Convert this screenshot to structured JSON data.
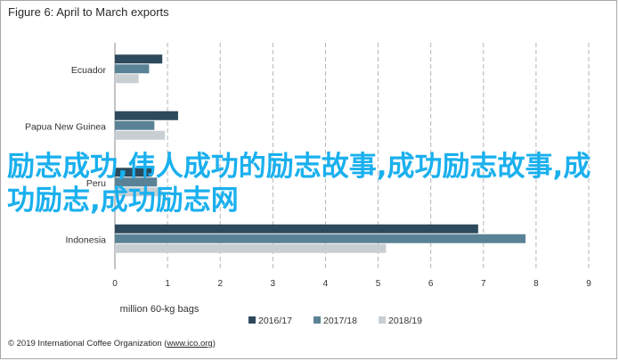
{
  "title": "Figure 6: April to March exports",
  "footer": {
    "prefix": "© 2019 International Coffee Organization (",
    "link": "www.ico.org",
    "suffix": ")"
  },
  "overlay_text": "励志成功,伟人成功的励志故事,成功励志故事,成功励志,成功励志网",
  "chart_data": {
    "type": "bar",
    "orientation": "horizontal",
    "categories": [
      "Ecuador",
      "Papua New Guinea",
      "Peru",
      "Indonesia"
    ],
    "series": [
      {
        "name": "2016/17",
        "color": "#2d4a5c",
        "values": [
          0.9,
          1.2,
          0.7,
          6.9
        ]
      },
      {
        "name": "2017/18",
        "color": "#5a8296",
        "values": [
          0.65,
          0.75,
          0.8,
          7.8
        ]
      },
      {
        "name": "2018/19",
        "color": "#c9ced2",
        "values": [
          0.45,
          0.95,
          0.9,
          5.15
        ]
      }
    ],
    "xlabel": "million 60-kg bags",
    "xlim": [
      0,
      9
    ],
    "xticks": [
      "0",
      "1",
      "2",
      "3",
      "4",
      "5",
      "6",
      "7",
      "8",
      "9"
    ],
    "grid": "vertical dashed",
    "legend": "bottom"
  }
}
